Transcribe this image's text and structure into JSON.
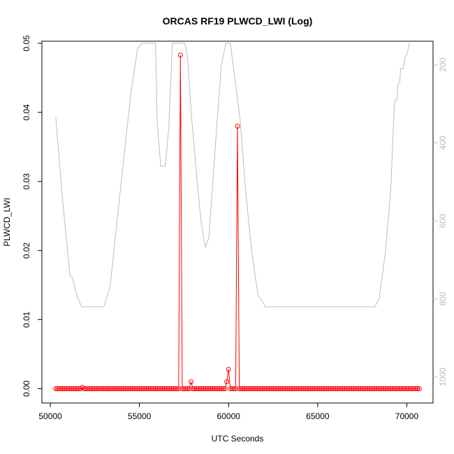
{
  "chart_data": {
    "type": "line",
    "title": "ORCAS RF19 PLWCD_LWI (Log)",
    "xlabel": "UTC Seconds",
    "ylabel": "PLWCD_LWI",
    "xlim": [
      50000,
      71000
    ],
    "ylim": [
      0,
      0.05
    ],
    "x_ticks": [
      50000,
      55000,
      60000,
      65000,
      70000
    ],
    "x_tick_labels": [
      "50000",
      "55000",
      "60000",
      "65000",
      "70000"
    ],
    "y_ticks": [
      0,
      0.01,
      0.02,
      0.03,
      0.04,
      0.05
    ],
    "y_tick_labels": [
      "0.00",
      "0.01",
      "0.02",
      "0.03",
      "0.04",
      "0.05"
    ],
    "y2lim": [
      1030,
      145
    ],
    "y2_ticks": [
      200,
      400,
      600,
      800,
      1000
    ],
    "y2_tick_labels": [
      "200",
      "400",
      "600",
      "800",
      "1000"
    ],
    "grid": false,
    "colors": {
      "primary": "#ff0000",
      "secondary": "#bdbdbd"
    },
    "series": [
      {
        "color": "#ff0000",
        "axis": "left",
        "style": "line+points",
        "x_start": 50300,
        "x_end": 70700,
        "x_step": 100,
        "baseline": 0,
        "peaks": [
          [
            51800,
            0.0002
          ],
          [
            57300,
            0.0483
          ],
          [
            57900,
            0.001
          ],
          [
            59900,
            0.001
          ],
          [
            60000,
            0.0028
          ],
          [
            60500,
            0.038
          ]
        ]
      },
      {
        "color": "#bdbdbd",
        "axis": "right",
        "style": "line",
        "x": [
          50300,
          50700,
          50950,
          51100,
          51200,
          51350,
          51500,
          51750,
          53000,
          53350,
          53700,
          54100,
          54500,
          54900,
          55150,
          55900,
          56000,
          56200,
          56450,
          56650,
          56850,
          57550,
          57700,
          57900,
          58200,
          58450,
          58700,
          58900,
          59100,
          59350,
          59600,
          59850,
          60100,
          60650,
          60950,
          61300,
          61650,
          61950,
          62050,
          68200,
          68450,
          68800,
          69100,
          69300,
          69350,
          69450,
          69500,
          69600,
          69650,
          69800,
          69900,
          70000,
          70150
        ],
        "values": [
          333,
          552,
          667,
          740,
          742,
          765,
          793,
          820,
          820,
          770,
          620,
          450,
          280,
          158,
          145,
          145,
          350,
          460,
          460,
          360,
          145,
          145,
          180,
          320,
          480,
          600,
          668,
          640,
          510,
          350,
          200,
          145,
          145,
          340,
          520,
          680,
          790,
          810,
          820,
          820,
          800,
          680,
          520,
          298,
          290,
          290,
          250,
          245,
          210,
          210,
          180,
          175,
          145
        ]
      }
    ]
  }
}
